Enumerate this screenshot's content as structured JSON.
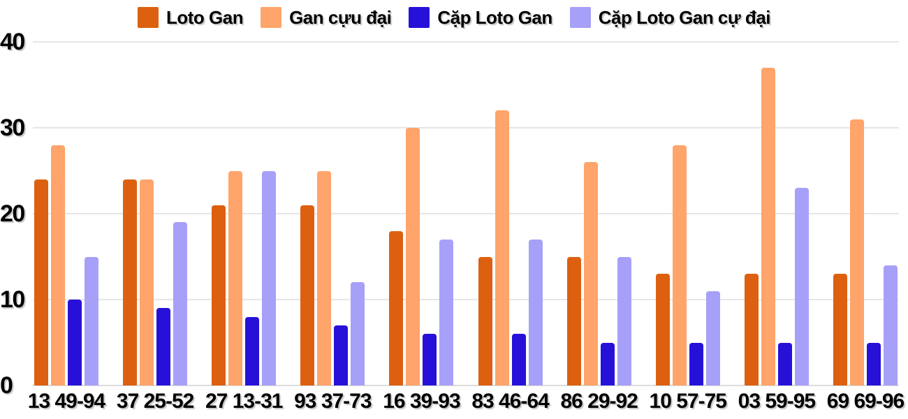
{
  "colors": {
    "background": "#ffffff",
    "grid": "#e6e6e6",
    "baseline": "#dcdcdc",
    "axis_text": "#000000"
  },
  "chart_data": {
    "type": "bar",
    "title": "",
    "xlabel": "",
    "ylabel": "",
    "categories": [
      "13 49-94",
      "37 25-52",
      "27 13-31",
      "93 37-73",
      "16 39-93",
      "83 46-64",
      "86 29-92",
      "10 57-75",
      "03 59-95",
      "69 69-96"
    ],
    "series": [
      {
        "name": "Loto Gan",
        "color": "#dd6010",
        "values": [
          24,
          24,
          21,
          21,
          18,
          15,
          15,
          13,
          13,
          13
        ]
      },
      {
        "name": "Gan cựu đại",
        "color": "#ffa46b",
        "values": [
          28,
          24,
          25,
          25,
          30,
          32,
          26,
          28,
          37,
          31
        ]
      },
      {
        "name": "Cặp Loto Gan",
        "color": "#2711d9",
        "values": [
          10,
          9,
          8,
          7,
          6,
          6,
          5,
          5,
          5,
          5
        ]
      },
      {
        "name": "Cặp Loto Gan cự đại",
        "color": "#a7a0f8",
        "values": [
          15,
          19,
          25,
          12,
          17,
          17,
          15,
          11,
          23,
          14
        ]
      }
    ],
    "ylim": [
      0,
      40
    ],
    "yticks": [
      0,
      10,
      20,
      30,
      40
    ],
    "grid": true,
    "legend_position": "top"
  }
}
